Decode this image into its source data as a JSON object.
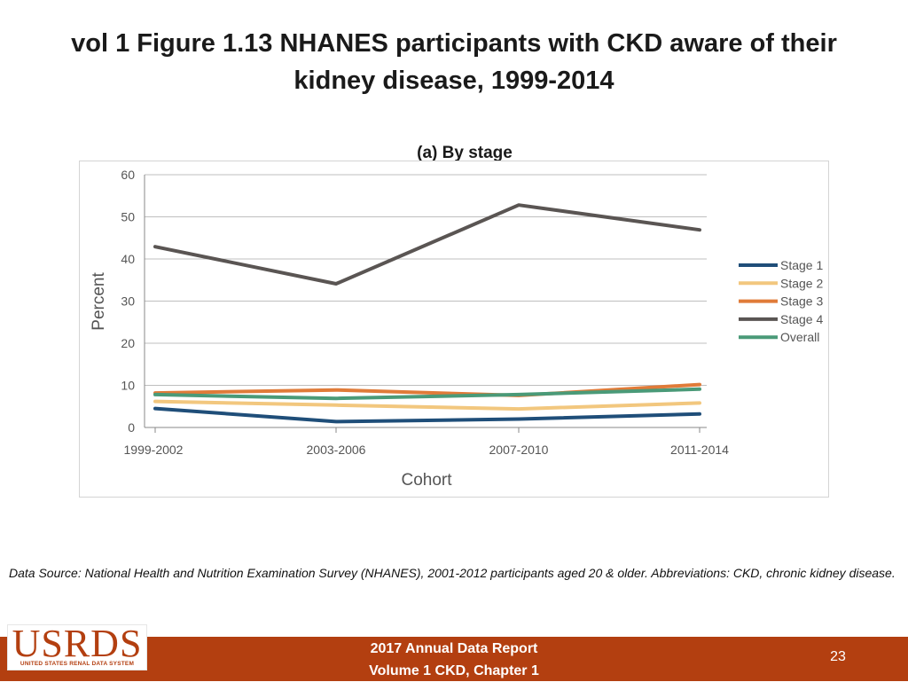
{
  "slide": {
    "title": "vol 1 Figure 1.13 NHANES participants with CKD aware of their kidney disease, 1999-2014",
    "source": "Data Source: National Health and Nutrition Examination Survey (NHANES), 2001-2012 participants aged 20 & older. Abbreviations: CKD, chronic kidney disease.",
    "footer_line1": "2017 Annual Data Report",
    "footer_line2": "Volume 1 CKD, Chapter 1",
    "page_number": "23",
    "logo_main": "USRDS",
    "logo_sub": "UNITED STATES RENAL DATA SYSTEM"
  },
  "chart_data": {
    "type": "line",
    "subtitle": "(a) By stage",
    "xlabel": "Cohort",
    "ylabel": "Percent",
    "categories": [
      "1999-2002",
      "2003-2006",
      "2007-2010",
      "2011-2014"
    ],
    "ylim": [
      0,
      60
    ],
    "yticks": [
      0,
      10,
      20,
      30,
      40,
      50,
      60
    ],
    "grid": true,
    "legend_position": "right",
    "series": [
      {
        "name": "Stage 1",
        "color": "#1f4e79",
        "values": [
          4.5,
          1.4,
          2.0,
          3.2
        ]
      },
      {
        "name": "Stage 2",
        "color": "#f2c77e",
        "values": [
          6.2,
          5.3,
          4.4,
          5.8
        ]
      },
      {
        "name": "Stage 3",
        "color": "#e07b39",
        "values": [
          8.2,
          8.9,
          7.6,
          10.2
        ]
      },
      {
        "name": "Stage 4",
        "color": "#5a5553",
        "values": [
          42.9,
          34.1,
          52.8,
          46.9
        ]
      },
      {
        "name": "Overall",
        "color": "#4a9a78",
        "values": [
          7.8,
          6.9,
          7.8,
          9.1
        ]
      }
    ]
  }
}
